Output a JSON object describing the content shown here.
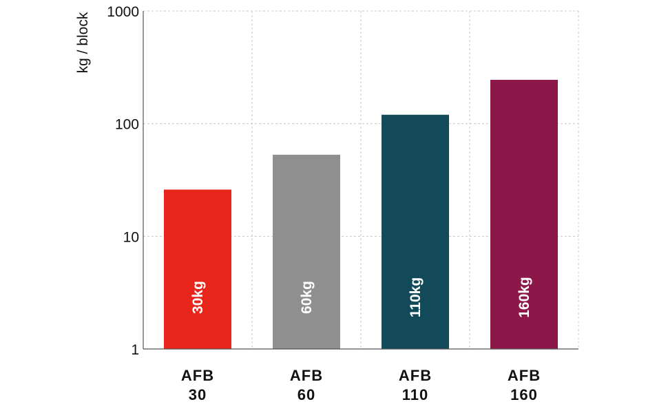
{
  "chart_data": {
    "type": "bar",
    "title": "",
    "xlabel": "",
    "ylabel": "kg / block",
    "yscale": "log",
    "ylim": [
      1,
      1000
    ],
    "yticks": [
      {
        "value": 1,
        "label": "1"
      },
      {
        "value": 10,
        "label": "10"
      },
      {
        "value": 100,
        "label": "100"
      },
      {
        "value": 1000,
        "label": "1000"
      }
    ],
    "grid": true,
    "categories": [
      {
        "line1": "AFB",
        "line2": "30"
      },
      {
        "line1": "AFB",
        "line2": "60"
      },
      {
        "line1": "AFB",
        "line2": "110"
      },
      {
        "line1": "AFB",
        "line2": "160"
      }
    ],
    "values": [
      26,
      53,
      120,
      245
    ],
    "data_labels": [
      "30kg",
      "60kg",
      "110kg",
      "160kg"
    ],
    "colors": [
      "#e8251b",
      "#8f8f8f",
      "#124a5a",
      "#8b1848"
    ]
  }
}
